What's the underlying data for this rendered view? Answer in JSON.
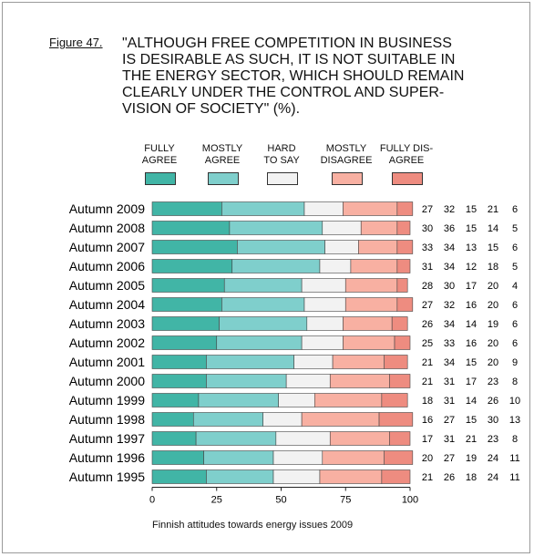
{
  "figure_label": "Figure 47.",
  "caption": "Finnish attitudes towards energy issues 2009",
  "chart_data": {
    "type": "bar",
    "orientation": "horizontal",
    "stacked": true,
    "title": "\"ALTHOUGH FREE COMPETITION IN BUSINESS\nIS DESIRABLE AS SUCH, IT IS NOT SUITABLE IN\nTHE ENERGY SECTOR, WHICH SHOULD REMAIN\nCLEARLY UNDER THE CONTROL AND SUPER-\nVISION OF SOCIETY\" (%).",
    "categories": [
      "Autumn 2009",
      "Autumn 2008",
      "Autumn 2007",
      "Autumn 2006",
      "Autumn 2005",
      "Autumn 2004",
      "Autumn 2003",
      "Autumn 2002",
      "Autumn 2001",
      "Autumn 2000",
      "Autumn 1999",
      "Autumn 1998",
      "Autumn 1997",
      "Autumn 1996",
      "Autumn 1995"
    ],
    "series": [
      {
        "name": "FULLY\nAGREE",
        "color": "#41b5a6",
        "values": [
          27,
          30,
          33,
          31,
          28,
          27,
          26,
          25,
          21,
          21,
          18,
          16,
          17,
          20,
          21
        ]
      },
      {
        "name": "MOSTLY\nAGREE",
        "color": "#7fcfcc",
        "values": [
          32,
          36,
          34,
          34,
          30,
          32,
          34,
          33,
          34,
          31,
          31,
          27,
          31,
          27,
          26
        ]
      },
      {
        "name": "HARD\nTO SAY",
        "color": "#f2f2f2",
        "values": [
          15,
          15,
          13,
          12,
          17,
          16,
          14,
          16,
          15,
          17,
          14,
          15,
          21,
          19,
          18
        ]
      },
      {
        "name": "MOSTLY\nDISAGREE",
        "color": "#f8b0a2",
        "values": [
          21,
          14,
          15,
          18,
          20,
          20,
          19,
          20,
          20,
          23,
          26,
          30,
          23,
          24,
          24
        ]
      },
      {
        "name": "FULLY DIS-\nAGREE",
        "color": "#ee8c80",
        "values": [
          6,
          5,
          6,
          5,
          4,
          6,
          6,
          6,
          9,
          8,
          10,
          13,
          8,
          11,
          11
        ]
      }
    ],
    "xlim": [
      0,
      100
    ],
    "xticks": [
      0,
      25,
      50,
      75,
      100
    ],
    "legend_position": "top",
    "grid": false
  }
}
